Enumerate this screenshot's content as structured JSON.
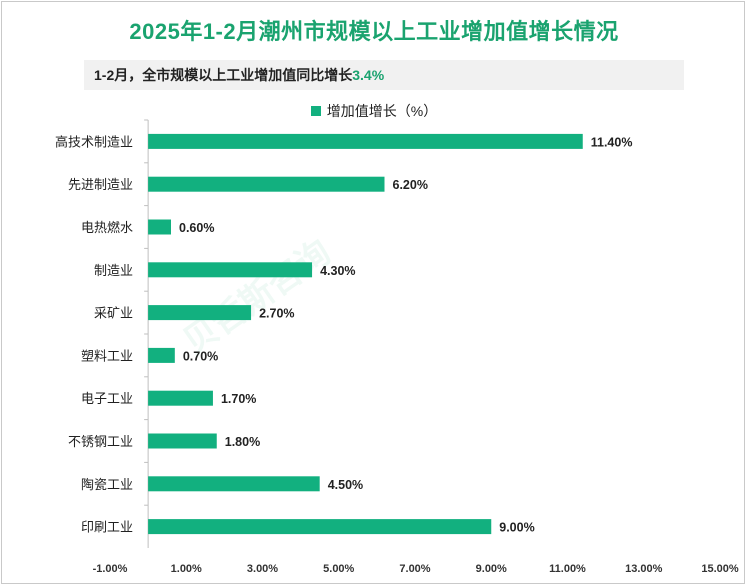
{
  "watermark": "贝哲斯咨询",
  "chart_data": {
    "type": "bar",
    "orientation": "horizontal",
    "title": "2025年1-2月潮州市规模以上工业增加值增长情况",
    "subtitle": {
      "text": "1-2月，全市规模以上工业增加值同比增长",
      "highlight": "3.4%"
    },
    "legend": [
      "增加值增长（%）"
    ],
    "legend_position": "top",
    "categories": [
      "高技术制造业",
      "先进制造业",
      "电热燃水",
      "制造业",
      "采矿业",
      "塑料工业",
      "电子工业",
      "不锈钢工业",
      "陶瓷工业",
      "印刷工业"
    ],
    "values": [
      11.4,
      6.2,
      0.6,
      4.3,
      2.7,
      0.7,
      1.7,
      1.8,
      4.5,
      9.0
    ],
    "value_labels": [
      "11.40%",
      "6.20%",
      "0.60%",
      "4.30%",
      "2.70%",
      "0.70%",
      "1.70%",
      "1.80%",
      "4.50%",
      "9.00%"
    ],
    "xlim": [
      -1,
      15
    ],
    "x_ticks": [
      "-1.00%",
      "1.00%",
      "3.00%",
      "5.00%",
      "7.00%",
      "9.00%",
      "11.00%",
      "13.00%",
      "15.00%"
    ],
    "grid": false,
    "bar_color": "#12b07f"
  }
}
